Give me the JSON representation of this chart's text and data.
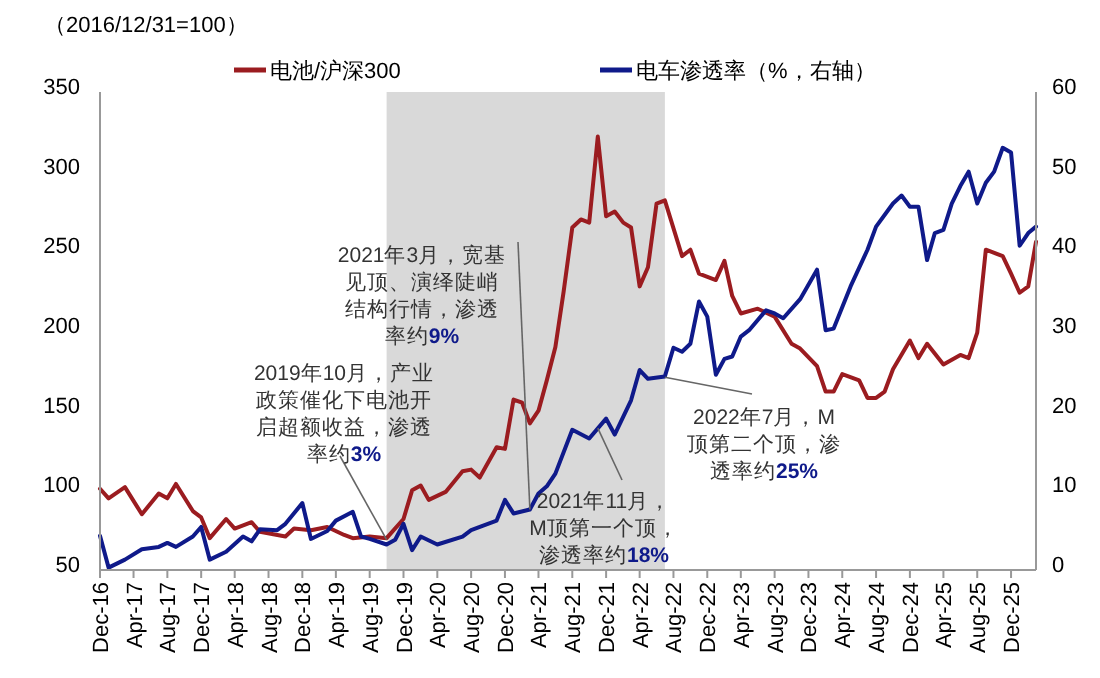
{
  "chart_data": {
    "type": "line",
    "ylabel": "（2016/12/31=100）",
    "legend": "top",
    "grid": false,
    "xlim": [
      "2016-12",
      "2026-03"
    ],
    "xticks": [
      {
        "value": "2016-12",
        "label": "Dec-16"
      },
      {
        "value": "2017-04",
        "label": "Apr-17"
      },
      {
        "value": "2017-08",
        "label": "Aug-17"
      },
      {
        "value": "2017-12",
        "label": "Dec-17"
      },
      {
        "value": "2018-04",
        "label": "Apr-18"
      },
      {
        "value": "2018-08",
        "label": "Aug-18"
      },
      {
        "value": "2018-12",
        "label": "Dec-18"
      },
      {
        "value": "2019-04",
        "label": "Apr-19"
      },
      {
        "value": "2019-08",
        "label": "Aug-19"
      },
      {
        "value": "2019-12",
        "label": "Dec-19"
      },
      {
        "value": "2020-04",
        "label": "Apr-20"
      },
      {
        "value": "2020-08",
        "label": "Aug-20"
      },
      {
        "value": "2020-12",
        "label": "Dec-20"
      },
      {
        "value": "2021-04",
        "label": "Apr-21"
      },
      {
        "value": "2021-08",
        "label": "Aug-21"
      },
      {
        "value": "2021-12",
        "label": "Dec-21"
      },
      {
        "value": "2022-04",
        "label": "Apr-22"
      },
      {
        "value": "2022-08",
        "label": "Aug-22"
      },
      {
        "value": "2022-12",
        "label": "Dec-22"
      },
      {
        "value": "2023-04",
        "label": "Apr-23"
      },
      {
        "value": "2023-08",
        "label": "Aug-23"
      },
      {
        "value": "2023-12",
        "label": "Dec-23"
      },
      {
        "value": "2024-04",
        "label": "Apr-24"
      },
      {
        "value": "2024-08",
        "label": "Aug-24"
      },
      {
        "value": "2024-12",
        "label": "Dec-24"
      },
      {
        "value": "2025-04",
        "label": "Apr-25"
      },
      {
        "value": "2025-08",
        "label": "Aug-25"
      },
      {
        "value": "2025-12",
        "label": "Dec-25"
      }
    ],
    "ylim": [
      50,
      350
    ],
    "yticks": [
      50,
      100,
      150,
      200,
      250,
      300,
      350
    ],
    "y2lim": [
      0,
      60
    ],
    "y2ticks": [
      0,
      10,
      20,
      30,
      40,
      50,
      60
    ],
    "bands": [
      {
        "axis": "x",
        "from": "2019-10",
        "to": "2022-07",
        "color": "#d9d9d9"
      }
    ],
    "annotations": [
      {
        "text": "2019年10月，产业政策催化下电池开启超额收益，渗透率约3%",
        "x": "2019-10",
        "y": 69
      },
      {
        "text": "2021年3月，宽基见顶、演绎陡峭结构行情，渗透率约9%",
        "x": "2021-03",
        "y": 88
      },
      {
        "text": "2021年11月，M顶第一个顶，渗透率约18%",
        "x": "2021-11",
        "y": 139
      },
      {
        "text": "2022年7月，M顶第二个顶，渗透率约25%",
        "x": "2022-07",
        "y": 171
      }
    ],
    "series": [
      {
        "name": "电池/沪深300",
        "color": "#9b1c20",
        "x": [
          "2016-12",
          "2017-01",
          "2017-03",
          "2017-05",
          "2017-07",
          "2017-08",
          "2017-09",
          "2017-11",
          "2017-12",
          "2018-01",
          "2018-03",
          "2018-04",
          "2018-06",
          "2018-07",
          "2018-10",
          "2018-11",
          "2019-01",
          "2019-03",
          "2019-05",
          "2019-06",
          "2019-08",
          "2019-10",
          "2019-12",
          "2020-01",
          "2020-02",
          "2020-03",
          "2020-05",
          "2020-07",
          "2020-08",
          "2020-09",
          "2020-11",
          "2020-12",
          "2021-01",
          "2021-02",
          "2021-03",
          "2021-04",
          "2021-05",
          "2021-06",
          "2021-07",
          "2021-08",
          "2021-09",
          "2021-10",
          "2021-11",
          "2021-12",
          "2022-01",
          "2022-02",
          "2022-03",
          "2022-04",
          "2022-05",
          "2022-06",
          "2022-07",
          "2022-09",
          "2022-10",
          "2022-11",
          "2023-01",
          "2023-02",
          "2023-03",
          "2023-04",
          "2023-06",
          "2023-08",
          "2023-10",
          "2023-11",
          "2024-01",
          "2024-02",
          "2024-03",
          "2024-04",
          "2024-06",
          "2024-07",
          "2024-08",
          "2024-09",
          "2024-10",
          "2024-12",
          "2025-01",
          "2025-02",
          "2025-04",
          "2025-06",
          "2025-07",
          "2025-08",
          "2025-09",
          "2025-11",
          "2025-12",
          "2026-01",
          "2026-02",
          "2026-03"
        ],
        "values": [
          101,
          95,
          102,
          85,
          98,
          95,
          104,
          87,
          83,
          70,
          82,
          76,
          80,
          74,
          71,
          76,
          75,
          77,
          72,
          70,
          71,
          70,
          82,
          100,
          103,
          94,
          99,
          112,
          113,
          108,
          127,
          126,
          157,
          155,
          142,
          150,
          169,
          190,
          225,
          265,
          270,
          268,
          322,
          272,
          275,
          268,
          265,
          228,
          240,
          280,
          282,
          247,
          251,
          236,
          232,
          244,
          222,
          211,
          214,
          209,
          192,
          189,
          178,
          162,
          162,
          173,
          169,
          158,
          158,
          162,
          176,
          194,
          183,
          192,
          179,
          185,
          183,
          199,
          251,
          247,
          236,
          224,
          228,
          256
        ]
      },
      {
        "name": "电车渗透率（%，右轴）",
        "color": "#0f1a8a",
        "axis": "y2",
        "x": [
          "2016-12",
          "2017-01",
          "2017-03",
          "2017-05",
          "2017-07",
          "2017-08",
          "2017-09",
          "2017-11",
          "2017-12",
          "2018-01",
          "2018-03",
          "2018-05",
          "2018-06",
          "2018-07",
          "2018-09",
          "2018-10",
          "2018-12",
          "2019-01",
          "2019-03",
          "2019-04",
          "2019-06",
          "2019-07",
          "2019-08",
          "2019-10",
          "2019-11",
          "2019-12",
          "2020-01",
          "2020-02",
          "2020-04",
          "2020-07",
          "2020-08",
          "2020-11",
          "2020-12",
          "2021-01",
          "2021-03",
          "2021-04",
          "2021-05",
          "2021-06",
          "2021-08",
          "2021-10",
          "2021-12",
          "2022-01",
          "2022-03",
          "2022-04",
          "2022-05",
          "2022-07",
          "2022-08",
          "2022-09",
          "2022-10",
          "2022-11",
          "2022-12",
          "2023-01",
          "2023-02",
          "2023-03",
          "2023-04",
          "2023-05",
          "2023-07",
          "2023-08",
          "2023-09",
          "2023-11",
          "2024-01",
          "2024-02",
          "2024-03",
          "2024-05",
          "2024-07",
          "2024-08",
          "2024-10",
          "2024-11",
          "2024-12",
          "2025-01",
          "2025-02",
          "2025-03",
          "2025-04",
          "2025-05",
          "2025-06",
          "2025-07",
          "2025-08",
          "2025-09",
          "2025-10",
          "2025-11",
          "2025-12",
          "2026-01",
          "2026-02",
          "2026-03"
        ],
        "values": [
          4.3,
          0.3,
          1.3,
          2.6,
          2.9,
          3.4,
          2.9,
          4.2,
          5.4,
          1.3,
          2.3,
          4.2,
          3.6,
          5.1,
          5,
          5.8,
          8.4,
          3.9,
          4.9,
          6.2,
          7.3,
          4.2,
          3.9,
          3.2,
          3.8,
          5.8,
          2.5,
          4.2,
          3.2,
          4.2,
          5,
          6.2,
          8.8,
          7.1,
          7.6,
          9.6,
          10.5,
          12.1,
          17.6,
          16.5,
          19,
          17,
          21.3,
          25.1,
          24,
          24.3,
          27.9,
          27.4,
          28.4,
          33.7,
          31.8,
          24.5,
          26.5,
          26.8,
          29.3,
          30.1,
          32.6,
          32.2,
          31.6,
          34,
          37.7,
          30.1,
          30.3,
          35.6,
          40.2,
          43.1,
          46,
          47,
          45.6,
          45.6,
          38.9,
          42.3,
          42.7,
          46,
          48.2,
          50,
          46,
          48.6,
          50,
          53,
          52.4,
          40.7,
          42.3,
          43.1
        ]
      }
    ]
  }
}
